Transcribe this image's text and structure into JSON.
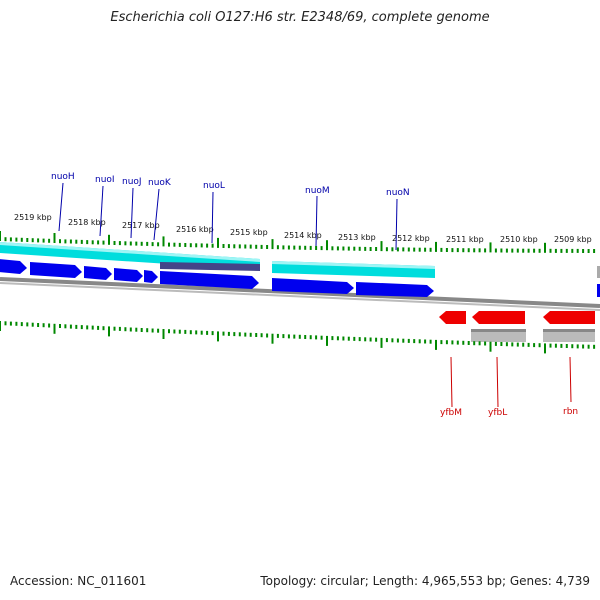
{
  "title": "Escherichia coli O127:H6 str. E2348/69, complete genome",
  "footer": {
    "accession": "Accession: NC_011601",
    "summary": "Topology: circular; Length: 4,965,553 bp; Genes: 4,739"
  },
  "colors": {
    "forward_gene": "#0000ee",
    "reverse_gene": "#ee0000",
    "forward_feature": "#00dddd",
    "forward_feature_dark": "#444488",
    "reverse_feature": "#aaaaaa",
    "backbone": "#888888",
    "tick": "#008800",
    "forward_label": "#0000aa",
    "reverse_label": "#cc0000"
  },
  "scale": {
    "unit": "kbp",
    "ticks": [
      {
        "value": 2519,
        "label": "2519 kbp"
      },
      {
        "value": 2518,
        "label": "2518 kbp"
      },
      {
        "value": 2517,
        "label": "2517 kbp"
      },
      {
        "value": 2516,
        "label": "2516 kbp"
      },
      {
        "value": 2515,
        "label": "2515 kbp"
      },
      {
        "value": 2514,
        "label": "2514 kbp"
      },
      {
        "value": 2513,
        "label": "2513 kbp"
      },
      {
        "value": 2512,
        "label": "2512 kbp"
      },
      {
        "value": 2511,
        "label": "2511 kbp"
      },
      {
        "value": 2510,
        "label": "2510 kbp"
      },
      {
        "value": 2509,
        "label": "2509 kbp"
      }
    ]
  },
  "genes": {
    "forward": [
      {
        "name": "nuoH"
      },
      {
        "name": "nuoI"
      },
      {
        "name": "nuoJ"
      },
      {
        "name": "nuoK"
      },
      {
        "name": "nuoL"
      },
      {
        "name": "nuoM"
      },
      {
        "name": "nuoN"
      }
    ],
    "reverse": [
      {
        "name": "yfbM"
      },
      {
        "name": "yfbL"
      },
      {
        "name": "rbn"
      }
    ]
  }
}
